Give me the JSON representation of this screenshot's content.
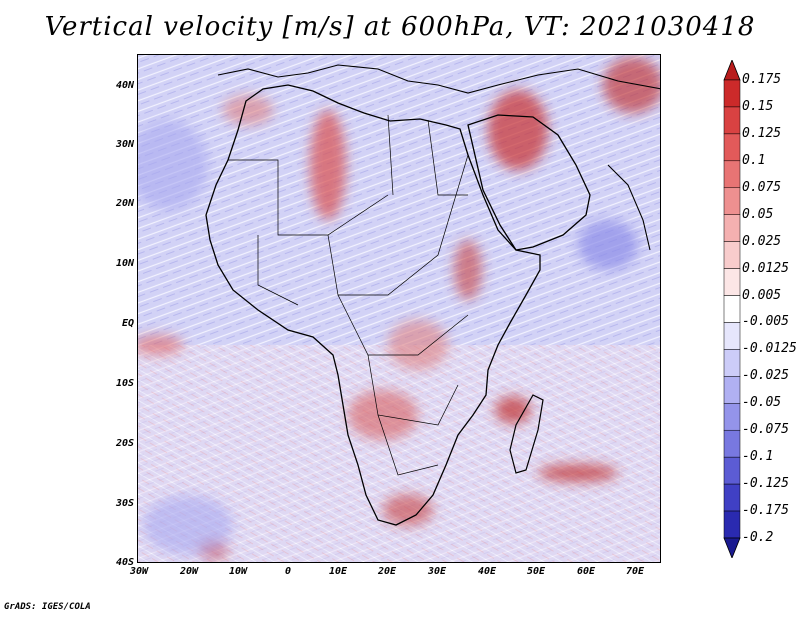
{
  "title": "Vertical velocity [m/s] at 600hPa, VT: 2021030418",
  "lat_labels": [
    "40N",
    "30N",
    "20N",
    "10N",
    "EQ",
    "10S",
    "20S",
    "30S",
    "40S"
  ],
  "lon_labels": [
    "30W",
    "20W",
    "10W",
    "0",
    "10E",
    "20E",
    "30E",
    "40E",
    "50E",
    "60E",
    "70E"
  ],
  "colorbar": {
    "labels": [
      "0.175",
      "0.15",
      "0.125",
      "0.1",
      "0.075",
      "0.05",
      "0.025",
      "0.0125",
      "0.005",
      "-0.005",
      "-0.0125",
      "-0.025",
      "-0.05",
      "-0.075",
      "-0.1",
      "-0.125",
      "-0.175",
      "-0.2"
    ],
    "colors": [
      "#b81c1c",
      "#cc2a2a",
      "#d94242",
      "#e25a5a",
      "#e87474",
      "#ee9090",
      "#f4b0b0",
      "#f8cccc",
      "#fce6e6",
      "#ffffff",
      "#e6e6fc",
      "#ccccf8",
      "#b0b0f2",
      "#9494ea",
      "#7878e0",
      "#5c5cd4",
      "#4040c4",
      "#2a2ab0",
      "#1a1a90"
    ]
  },
  "footer": "GrADS: IGES/COLA"
}
